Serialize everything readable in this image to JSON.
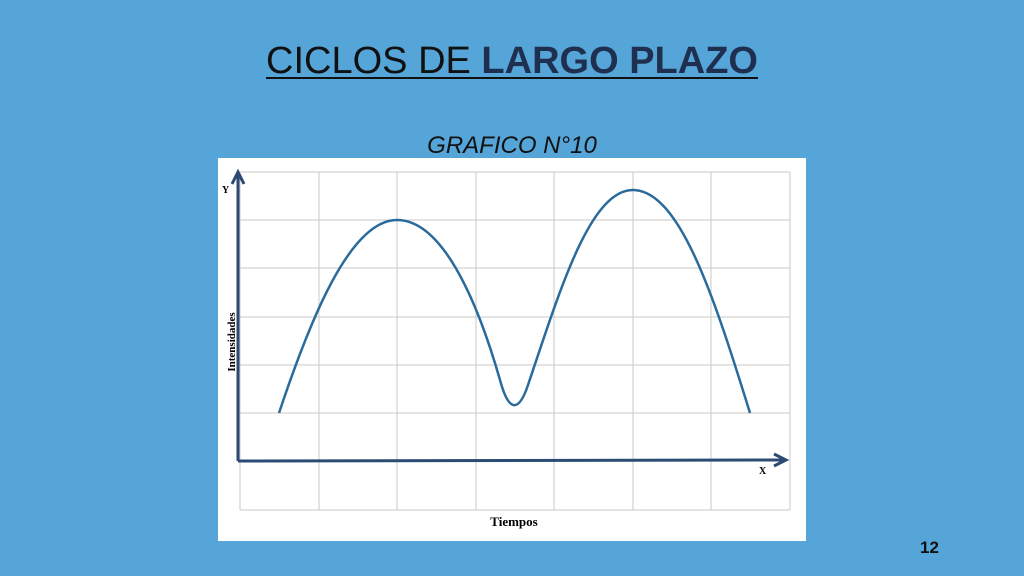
{
  "slide": {
    "title": {
      "prefix": "CICLOS DE ",
      "emphasis": "LARGO PLAZO"
    },
    "subtitle": "GRAFICO N°10",
    "figure": {
      "y_axis": "Y",
      "x_axis": "X",
      "y_label": "Intensidades",
      "x_label": "Tiempos"
    },
    "page_number": "12"
  }
}
